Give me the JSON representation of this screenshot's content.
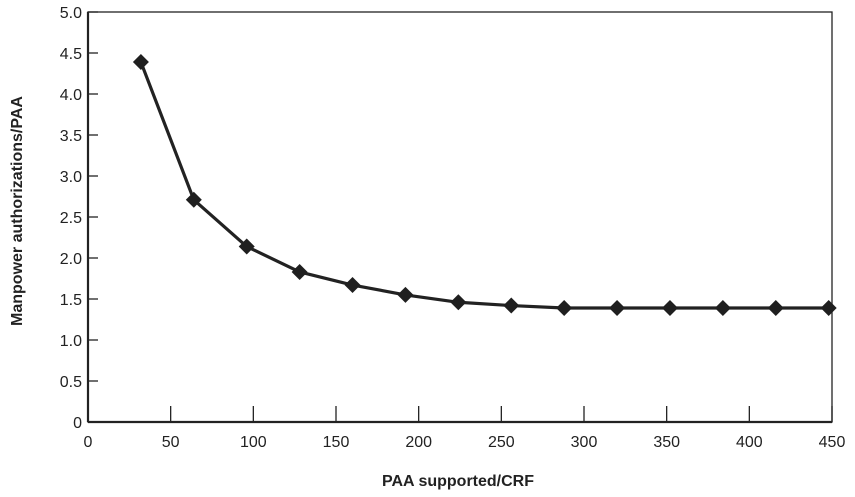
{
  "chart_data": {
    "type": "line",
    "title": "",
    "xlabel": "PAA supported/CRF",
    "ylabel": "Manpower authorizations/PAA",
    "xlim": [
      0,
      450
    ],
    "ylim": [
      0,
      5.0
    ],
    "x_ticks": [
      "0",
      "50",
      "100",
      "150",
      "200",
      "250",
      "300",
      "350",
      "400",
      "450"
    ],
    "y_ticks": [
      "0",
      "0.5",
      "1.0",
      "1.5",
      "2.0",
      "2.5",
      "3.0",
      "3.5",
      "4.0",
      "4.5",
      "5.0"
    ],
    "grid": false,
    "legend": "none",
    "series": [
      {
        "marker": "diamond",
        "color": "#222222",
        "x": [
          32,
          64,
          96,
          128,
          160,
          192,
          224,
          256,
          288,
          320,
          352,
          384,
          416,
          448
        ],
        "y": [
          4.39,
          2.71,
          2.14,
          1.83,
          1.67,
          1.55,
          1.46,
          1.42,
          1.39,
          1.39,
          1.39,
          1.39,
          1.39,
          1.39
        ]
      }
    ]
  }
}
